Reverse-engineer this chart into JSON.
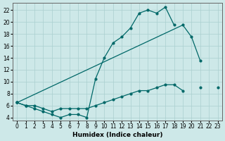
{
  "xlabel": "Humidex (Indice chaleur)",
  "background_color": "#cde8e8",
  "grid_color": "#aacfcf",
  "line_color": "#006868",
  "x": [
    0,
    1,
    2,
    3,
    4,
    5,
    6,
    7,
    8,
    9,
    10,
    11,
    12,
    13,
    14,
    15,
    16,
    17,
    18,
    19,
    20,
    21,
    22,
    23
  ],
  "y_top": [
    6.5,
    6.0,
    5.5,
    5.0,
    4.5,
    4.0,
    4.5,
    4.5,
    4.0,
    10.5,
    14.0,
    16.5,
    17.5,
    19.0,
    21.5,
    22.0,
    21.5,
    22.5,
    19.5,
    null,
    null,
    null,
    null,
    null
  ],
  "y_diag": [
    6.5,
    null,
    null,
    null,
    null,
    null,
    null,
    null,
    null,
    null,
    null,
    null,
    null,
    null,
    null,
    null,
    null,
    null,
    null,
    19.5,
    17.5,
    13.5,
    null,
    null
  ],
  "y_bot": [
    6.5,
    6.0,
    6.0,
    5.5,
    5.0,
    5.5,
    5.5,
    5.5,
    5.5,
    6.0,
    6.5,
    7.0,
    7.5,
    8.0,
    8.5,
    8.5,
    9.0,
    9.5,
    9.5,
    8.5,
    null,
    9.0,
    null,
    9.0
  ],
  "xlim": [
    -0.5,
    23.5
  ],
  "ylim": [
    3.5,
    23.2
  ],
  "yticks": [
    4,
    6,
    8,
    10,
    12,
    14,
    16,
    18,
    20,
    22
  ],
  "xticks": [
    0,
    1,
    2,
    3,
    4,
    5,
    6,
    7,
    8,
    9,
    10,
    11,
    12,
    13,
    14,
    15,
    16,
    17,
    18,
    19,
    20,
    21,
    22,
    23
  ]
}
